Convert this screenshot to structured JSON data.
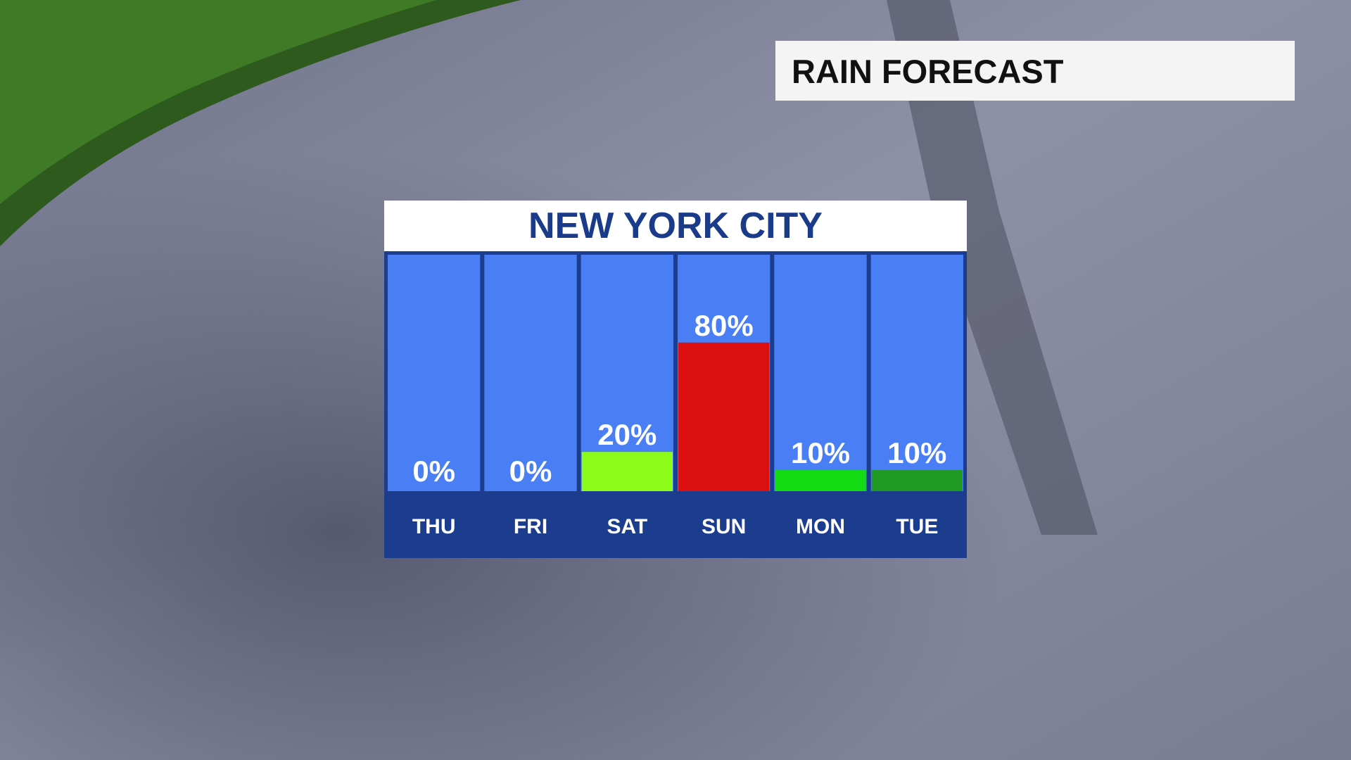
{
  "header": {
    "title": "RAIN FORECAST"
  },
  "chart_data": {
    "type": "bar",
    "title": "NEW YORK CITY",
    "categories": [
      "THU",
      "FRI",
      "SAT",
      "SUN",
      "MON",
      "TUE"
    ],
    "values": [
      0,
      0,
      20,
      80,
      10,
      10
    ],
    "value_labels": [
      "0%",
      "0%",
      "20%",
      "80%",
      "10%",
      "10%"
    ],
    "colors": [
      "#ffffff",
      "#ffffff",
      "#8efc1a",
      "#dc1010",
      "#12dc12",
      "#1f9a22"
    ],
    "ylim": [
      0,
      100
    ]
  }
}
